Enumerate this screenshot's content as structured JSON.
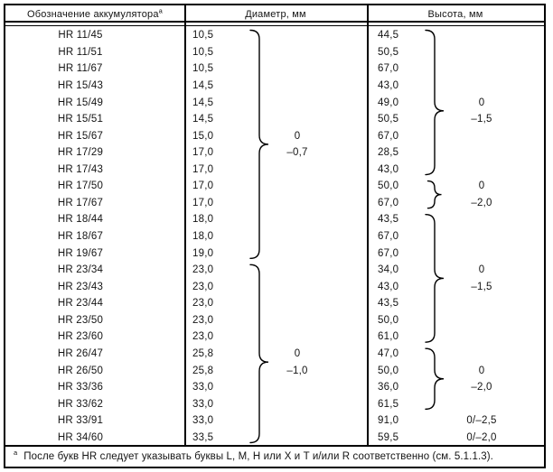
{
  "table": {
    "headers": {
      "designation": "Обозначение аккумулятора",
      "designation_note_mark": "a",
      "diameter": "Диаметр, мм",
      "height": "Высота, мм"
    },
    "rows": [
      {
        "designation": "HR 11/45",
        "diameter": "10,5",
        "diameter_tol": "",
        "height": "44,5",
        "height_tol": ""
      },
      {
        "designation": "HR 11/51",
        "diameter": "10,5",
        "diameter_tol": "",
        "height": "50,5",
        "height_tol": ""
      },
      {
        "designation": "HR 11/67",
        "diameter": "10,5",
        "diameter_tol": "",
        "height": "67,0",
        "height_tol": ""
      },
      {
        "designation": "HR 15/43",
        "diameter": "14,5",
        "diameter_tol": "",
        "height": "43,0",
        "height_tol": ""
      },
      {
        "designation": "HR 15/49",
        "diameter": "14,5",
        "diameter_tol": "",
        "height": "49,0",
        "height_tol": "0"
      },
      {
        "designation": "HR 15/51",
        "diameter": "14,5",
        "diameter_tol": "",
        "height": "50,5",
        "height_tol": "–1,5"
      },
      {
        "designation": "HR 15/67",
        "diameter": "15,0",
        "diameter_tol": "0",
        "height": "67,0",
        "height_tol": ""
      },
      {
        "designation": "HR 17/29",
        "diameter": "17,0",
        "diameter_tol": "–0,7",
        "height": "28,5",
        "height_tol": ""
      },
      {
        "designation": "HR 17/43",
        "diameter": "17,0",
        "diameter_tol": "",
        "height": "43,0",
        "height_tol": ""
      },
      {
        "designation": "HR 17/50",
        "diameter": "17,0",
        "diameter_tol": "",
        "height": "50,0",
        "height_tol": "0"
      },
      {
        "designation": "HR 17/67",
        "diameter": "17,0",
        "diameter_tol": "",
        "height": "67,0",
        "height_tol": "–2,0"
      },
      {
        "designation": "HR 18/44",
        "diameter": "18,0",
        "diameter_tol": "",
        "height": "43,5",
        "height_tol": ""
      },
      {
        "designation": "HR 18/67",
        "diameter": "18,0",
        "diameter_tol": "",
        "height": "67,0",
        "height_tol": ""
      },
      {
        "designation": "HR 19/67",
        "diameter": "19,0",
        "diameter_tol": "",
        "height": "67,0",
        "height_tol": ""
      },
      {
        "designation": "HR 23/34",
        "diameter": "23,0",
        "diameter_tol": "",
        "height": "34,0",
        "height_tol": "0"
      },
      {
        "designation": "HR 23/43",
        "diameter": "23,0",
        "diameter_tol": "",
        "height": "43,0",
        "height_tol": "–1,5"
      },
      {
        "designation": "HR 23/44",
        "diameter": "23,0",
        "diameter_tol": "",
        "height": "43,5",
        "height_tol": ""
      },
      {
        "designation": "HR 23/50",
        "diameter": "23,0",
        "diameter_tol": "",
        "height": "50,0",
        "height_tol": ""
      },
      {
        "designation": "HR 23/60",
        "diameter": "23,0",
        "diameter_tol": "",
        "height": "61,0",
        "height_tol": ""
      },
      {
        "designation": "HR 26/47",
        "diameter": "25,8",
        "diameter_tol": "0",
        "height": "47,0",
        "height_tol": ""
      },
      {
        "designation": "HR 26/50",
        "diameter": "25,8",
        "diameter_tol": "–1,0",
        "height": "50,0",
        "height_tol": "0"
      },
      {
        "designation": "HR 33/36",
        "diameter": "33,0",
        "diameter_tol": "",
        "height": "36,0",
        "height_tol": "–2,0"
      },
      {
        "designation": "HR 33/62",
        "diameter": "33,0",
        "diameter_tol": "",
        "height": "61,5",
        "height_tol": ""
      },
      {
        "designation": "HR 33/91",
        "diameter": "33,0",
        "diameter_tol": "",
        "height": "91,0",
        "height_tol": "0/–2,5"
      },
      {
        "designation": "HR 34/60",
        "diameter": "33,5",
        "diameter_tol": "",
        "height": "59,5",
        "height_tol": "0/–2,0"
      }
    ],
    "diameter_tolerance_groups": [
      {
        "from": 1,
        "to": 14,
        "cusp_after": 7,
        "upper": "0",
        "lower": "–0,7"
      },
      {
        "from": 15,
        "to": 25,
        "cusp_after": 20,
        "upper": "0",
        "lower": "–1,0"
      }
    ],
    "height_tolerance_groups": [
      {
        "from": 1,
        "to": 9,
        "cusp_after": 5,
        "upper": "0",
        "lower": "–1,5"
      },
      {
        "from": 10,
        "to": 11,
        "cusp_after": 10,
        "upper": "0",
        "lower": "–2,0"
      },
      {
        "from": 12,
        "to": 19,
        "cusp_after": 15,
        "upper": "0",
        "lower": "–1,5"
      },
      {
        "from": 20,
        "to": 23,
        "cusp_after": 21,
        "upper": "0",
        "lower": "–2,0"
      }
    ],
    "footnote": {
      "mark": "a",
      "text": "После букв HR следует указывать буквы L, M, H или X и T и/или R соответственно (см. 5.1.1.3)."
    }
  }
}
